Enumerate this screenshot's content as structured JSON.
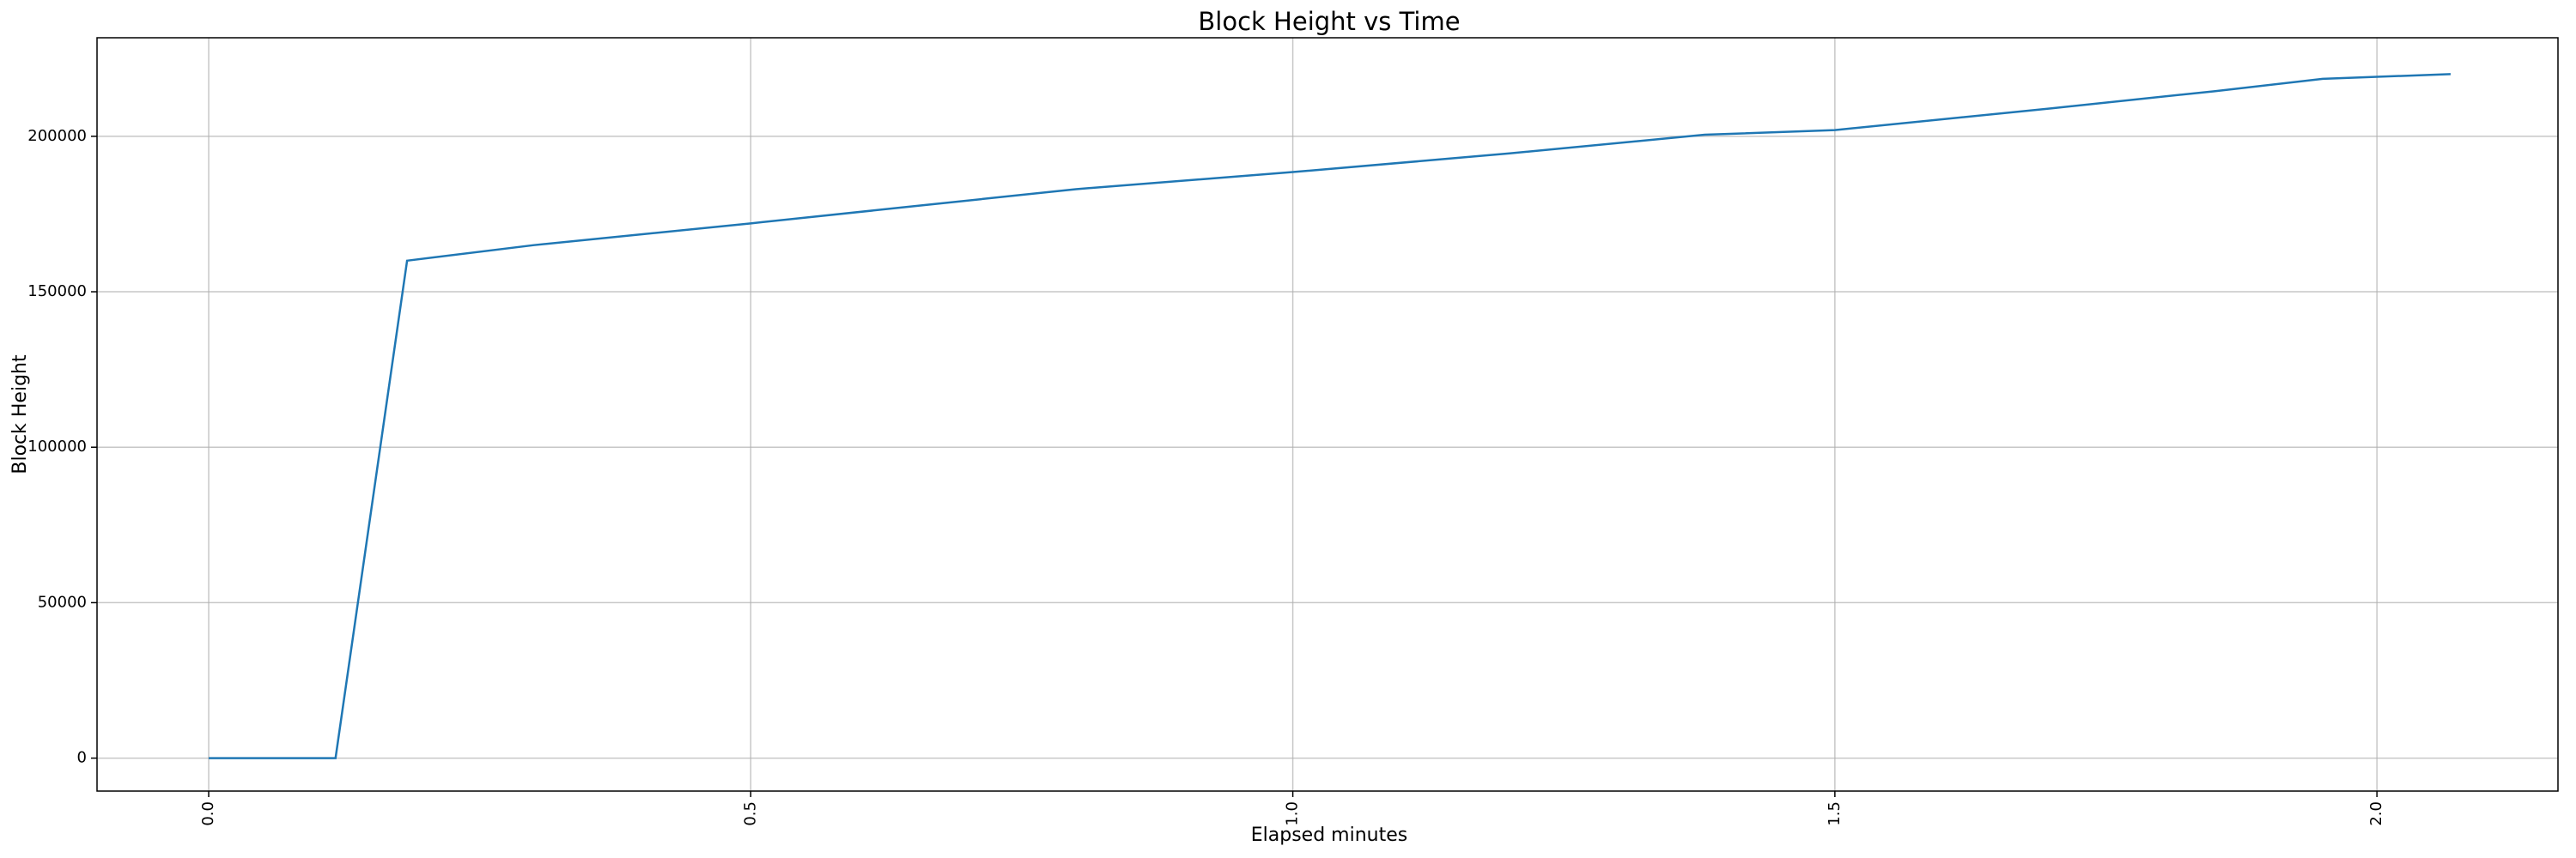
{
  "chart_data": {
    "type": "line",
    "title": "Block Height vs Time",
    "xlabel": "Elapsed minutes",
    "ylabel": "Block Height",
    "x": [
      0,
      0.117,
      0.183,
      0.3,
      0.5,
      0.65,
      0.8,
      1.0,
      1.2,
      1.38,
      1.5,
      1.7,
      1.85,
      1.95,
      2.068
    ],
    "series": [
      {
        "name": "Block Height",
        "color": "#1f77b4",
        "values": [
          0,
          0,
          160000,
          165000,
          172000,
          177500,
          183000,
          188500,
          194500,
          200500,
          202000,
          209000,
          214500,
          218500,
          220000
        ]
      }
    ],
    "xlim": [
      -0.103,
      2.167
    ],
    "ylim": [
      -10600,
      231700
    ],
    "xticks": [
      {
        "value": 0,
        "label": "0.0"
      },
      0.5,
      {
        "value": 1,
        "label": "1.0"
      },
      1.5,
      {
        "value": 2,
        "label": "2.0"
      }
    ],
    "yticks": [
      0,
      50000,
      100000,
      150000,
      200000
    ],
    "grid": true
  }
}
